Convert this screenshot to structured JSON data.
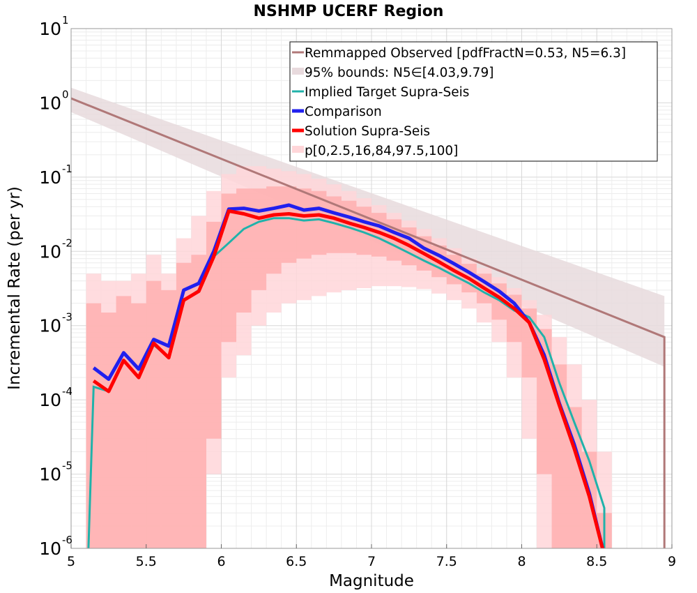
{
  "chart_data": {
    "type": "line",
    "title": "NSHMP UCERF Region",
    "xlabel": "Magnitude",
    "ylabel": "Incremental Rate (per yr)",
    "xlim": [
      5,
      9
    ],
    "ylim": [
      1e-06,
      10
    ],
    "yscale": "log",
    "grid": true,
    "x_ticks": [
      "5",
      "5.5",
      "6",
      "6.5",
      "7",
      "7.5",
      "8",
      "8.5",
      "9"
    ],
    "y_ticks": [
      {
        "base": "10",
        "exp": "-6",
        "value": -6
      },
      {
        "base": "10",
        "exp": "-5",
        "value": -5
      },
      {
        "base": "10",
        "exp": "-4",
        "value": -4
      },
      {
        "base": "10",
        "exp": "-3",
        "value": -3
      },
      {
        "base": "10",
        "exp": "-2",
        "value": -2
      },
      {
        "base": "10",
        "exp": "-1",
        "value": -1
      },
      {
        "base": "10",
        "exp": "0",
        "value": 0
      },
      {
        "base": "10",
        "exp": "1",
        "value": 1
      }
    ],
    "legend_position": "top-right",
    "series": [
      {
        "name": "Remmapped Observed [pdfFractN=0.53, N5=6.3]",
        "color": "#b07878",
        "style": "line",
        "x": [
          5.0,
          8.95,
          8.95
        ],
        "y": [
          1.15,
          0.0007,
          1e-07
        ]
      },
      {
        "name": "95% bounds: N5∈[4.03,9.79]",
        "color": "#e8dadd",
        "style": "band",
        "x": [
          5.0,
          8.95
        ],
        "upper": [
          1.6,
          0.0025
        ],
        "lower": [
          0.75,
          0.00028
        ]
      },
      {
        "name": "Implied Target Supra-Seis",
        "color": "#20b2aa",
        "style": "line",
        "x": [
          5.1,
          5.15,
          5.25,
          5.35,
          5.45,
          5.55,
          5.65,
          5.75,
          5.85,
          5.95,
          6.05,
          6.15,
          6.25,
          6.35,
          6.45,
          6.55,
          6.65,
          6.75,
          6.85,
          6.95,
          7.05,
          7.15,
          7.25,
          7.35,
          7.45,
          7.55,
          7.65,
          7.75,
          7.85,
          7.95,
          8.05,
          8.15,
          8.25,
          8.35,
          8.45,
          8.55,
          8.55
        ],
        "y": [
          1e-07,
          0.00015,
          0.00013,
          0.00033,
          0.0002,
          0.00055,
          0.00037,
          0.0022,
          0.003,
          0.0085,
          0.013,
          0.02,
          0.025,
          0.028,
          0.028,
          0.026,
          0.027,
          0.024,
          0.021,
          0.018,
          0.015,
          0.012,
          0.0095,
          0.0075,
          0.006,
          0.0047,
          0.0037,
          0.0028,
          0.0022,
          0.0016,
          0.0013,
          0.0007,
          0.00017,
          5e-05,
          1.5e-05,
          3.5e-06,
          1e-07
        ]
      },
      {
        "name": "Comparison",
        "color": "#2020ee",
        "style": "line",
        "x": [
          5.15,
          5.25,
          5.35,
          5.45,
          5.55,
          5.65,
          5.75,
          5.85,
          5.95,
          6.05,
          6.15,
          6.25,
          6.35,
          6.45,
          6.55,
          6.65,
          6.75,
          6.85,
          6.95,
          7.05,
          7.15,
          7.25,
          7.35,
          7.45,
          7.55,
          7.65,
          7.75,
          7.85,
          7.95,
          8.05,
          8.15,
          8.25,
          8.35,
          8.45,
          8.55
        ],
        "y": [
          0.00027,
          0.00019,
          0.00043,
          0.00026,
          0.00065,
          0.00053,
          0.003,
          0.0037,
          0.01,
          0.037,
          0.038,
          0.035,
          0.038,
          0.042,
          0.036,
          0.038,
          0.033,
          0.029,
          0.025,
          0.022,
          0.018,
          0.015,
          0.011,
          0.0088,
          0.0068,
          0.0052,
          0.0039,
          0.0029,
          0.002,
          0.0011,
          0.0004,
          9e-05,
          2.5e-05,
          5.5e-06,
          8e-07
        ]
      },
      {
        "name": "Solution Supra-Seis",
        "color": "#ff0000",
        "style": "line",
        "x": [
          5.15,
          5.25,
          5.35,
          5.45,
          5.55,
          5.65,
          5.75,
          5.85,
          5.95,
          6.05,
          6.15,
          6.25,
          6.35,
          6.45,
          6.55,
          6.65,
          6.75,
          6.85,
          6.95,
          7.05,
          7.15,
          7.25,
          7.35,
          7.45,
          7.55,
          7.65,
          7.75,
          7.85,
          7.95,
          8.05,
          8.15,
          8.25,
          8.35,
          8.45,
          8.55
        ],
        "y": [
          0.00018,
          0.00013,
          0.00034,
          0.0002,
          0.00058,
          0.00037,
          0.0022,
          0.0029,
          0.0085,
          0.035,
          0.032,
          0.028,
          0.031,
          0.032,
          0.03,
          0.031,
          0.028,
          0.024,
          0.021,
          0.018,
          0.015,
          0.012,
          0.0093,
          0.0072,
          0.0055,
          0.0043,
          0.0032,
          0.0024,
          0.0017,
          0.0011,
          0.00035,
          8.5e-05,
          2.2e-05,
          5e-06,
          8e-07
        ]
      },
      {
        "name": "p[0,2.5,16,84,97.5,100]",
        "color": "#ffb0b0",
        "style": "band",
        "x": [
          5.15,
          5.25,
          5.35,
          5.45,
          5.55,
          5.65,
          5.75,
          5.85,
          5.95,
          6.05,
          6.15,
          6.25,
          6.35,
          6.45,
          6.55,
          6.65,
          6.75,
          6.85,
          6.95,
          7.05,
          7.15,
          7.25,
          7.35,
          7.45,
          7.55,
          7.65,
          7.75,
          7.85,
          7.95,
          8.05,
          8.15,
          8.25,
          8.35,
          8.45,
          8.55
        ],
        "p0": [
          1e-07,
          1e-07,
          1e-07,
          1e-07,
          1e-07,
          1e-07,
          1e-07,
          1e-07,
          1e-07,
          1e-07,
          1e-07,
          1e-07,
          1e-07,
          1e-07,
          1e-07,
          1e-07,
          1e-07,
          1e-07,
          1e-07,
          1e-07,
          1e-07,
          1e-07,
          1e-07,
          1e-07,
          1e-07,
          1e-07,
          1e-07,
          1e-07,
          1e-07,
          1e-07,
          1e-07,
          1e-07,
          1e-07,
          1e-07,
          1e-07
        ],
        "p2_5": [
          1e-07,
          1e-07,
          1e-07,
          1e-07,
          1e-07,
          1e-07,
          1e-07,
          1e-07,
          1e-05,
          0.0002,
          0.0004,
          0.001,
          0.0015,
          0.002,
          0.0022,
          0.0025,
          0.0028,
          0.003,
          0.0032,
          0.0034,
          0.0034,
          0.0033,
          0.0031,
          0.0027,
          0.0022,
          0.0017,
          0.0011,
          0.0006,
          0.0002,
          3e-05,
          1e-07,
          1e-07,
          1e-07,
          1e-07,
          1e-07
        ],
        "p16": [
          1e-07,
          1e-07,
          1e-07,
          1e-07,
          1e-07,
          1e-07,
          1e-07,
          1e-07,
          3e-05,
          0.0006,
          0.0015,
          0.003,
          0.005,
          0.007,
          0.008,
          0.009,
          0.0095,
          0.0095,
          0.009,
          0.0085,
          0.0075,
          0.0065,
          0.0055,
          0.0045,
          0.0036,
          0.0028,
          0.002,
          0.0012,
          0.0006,
          0.0002,
          1e-05,
          1e-07,
          1e-07,
          1e-07,
          1e-07
        ],
        "p84": [
          0.002,
          0.0015,
          0.0025,
          0.002,
          0.004,
          0.003,
          0.007,
          0.009,
          0.025,
          0.06,
          0.07,
          0.07,
          0.075,
          0.075,
          0.07,
          0.065,
          0.055,
          0.048,
          0.04,
          0.033,
          0.027,
          0.021,
          0.016,
          0.012,
          0.009,
          0.0068,
          0.005,
          0.0037,
          0.0026,
          0.0017,
          0.0009,
          0.0003,
          8e-05,
          2e-05,
          3e-06
        ],
        "p97_5": [
          0.005,
          0.004,
          0.004,
          0.005,
          0.009,
          0.005,
          0.015,
          0.03,
          0.065,
          0.11,
          0.14,
          0.14,
          0.13,
          0.12,
          0.11,
          0.095,
          0.08,
          0.065,
          0.052,
          0.042,
          0.033,
          0.026,
          0.02,
          0.015,
          0.011,
          0.008,
          0.006,
          0.0045,
          0.0032,
          0.0022,
          0.0014,
          0.0007,
          0.0003,
          0.0001,
          2e-05
        ],
        "p100": [
          0.005,
          0.004,
          0.004,
          0.005,
          0.009,
          0.005,
          0.015,
          0.03,
          0.065,
          0.11,
          0.14,
          0.14,
          0.13,
          0.12,
          0.11,
          0.095,
          0.08,
          0.065,
          0.052,
          0.042,
          0.033,
          0.026,
          0.02,
          0.015,
          0.011,
          0.008,
          0.006,
          0.0045,
          0.0032,
          0.0022,
          0.0014,
          0.0007,
          0.0003,
          0.0001,
          2e-05
        ]
      }
    ]
  }
}
